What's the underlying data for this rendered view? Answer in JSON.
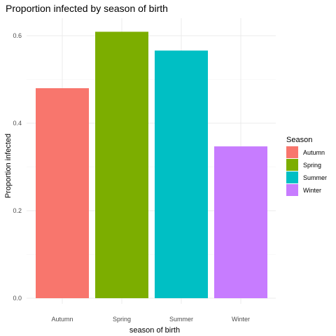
{
  "chart_data": {
    "type": "bar",
    "title": "Proportion infected by season of birth",
    "xlabel": "season of birth",
    "ylabel": "Proportion infected",
    "categories": [
      "Autumn",
      "Spring",
      "Summer",
      "Winter"
    ],
    "values": [
      0.48,
      0.609,
      0.566,
      0.347
    ],
    "colors": [
      "#F8766D",
      "#7CAE00",
      "#00BFC4",
      "#C77CFF"
    ],
    "ylim": [
      0,
      0.6
    ],
    "yticks": [
      0.0,
      0.2,
      0.4,
      0.6
    ],
    "ytick_labels": [
      "0.0",
      "0.2",
      "0.4",
      "0.6"
    ],
    "grid": true,
    "legend": {
      "title": "Season",
      "placement": "right",
      "entries": [
        "Autumn",
        "Spring",
        "Summer",
        "Winter"
      ]
    }
  }
}
